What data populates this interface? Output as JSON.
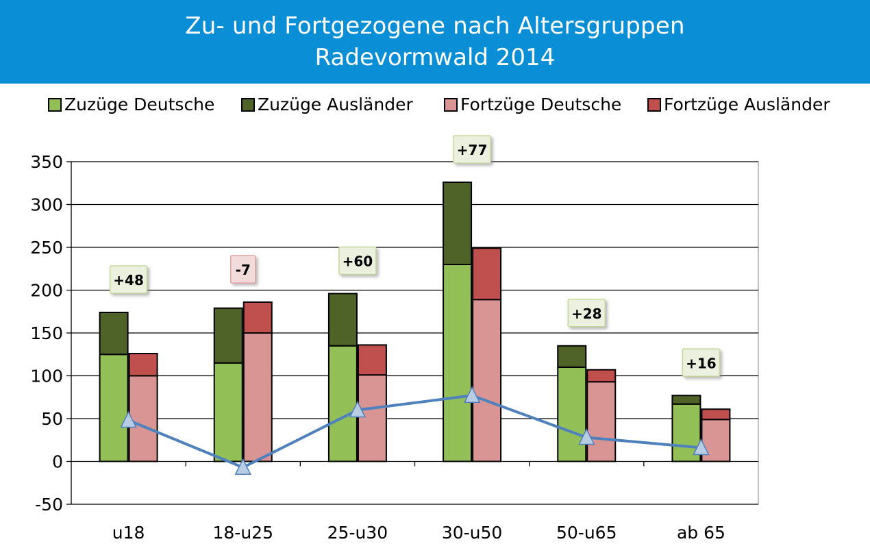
{
  "header": {
    "title_line1": "Zu- und Fortgezogene nach Altersgruppen",
    "title_line2": "Radevormwald 2014"
  },
  "colors": {
    "header_bg": "#0a8ed6",
    "zuzuege_deutsche": "#93bf57",
    "zuzuege_auslaender": "#4f6228",
    "fortzuege_deutsche": "#d99594",
    "fortzuege_auslaender": "#c0504d",
    "line": "#4f81bd",
    "marker": "#b8cce4",
    "label_positive_bg": "#ebf1de",
    "label_negative_bg": "#f2dcdb"
  },
  "legend": [
    {
      "label": "Zuzüge Deutsche",
      "color": "#93bf57"
    },
    {
      "label": "Zuzüge Ausländer",
      "color": "#4f6228"
    },
    {
      "label": "Fortzüge Deutsche",
      "color": "#d99594"
    },
    {
      "label": "Fortzüge Ausländer",
      "color": "#c0504d"
    }
  ],
  "chart_data": {
    "type": "bar",
    "stacked": true,
    "categories": [
      "u18",
      "18-u25",
      "25-u30",
      "30-u50",
      "50-u65",
      "ab 65"
    ],
    "series": [
      {
        "name": "Zuzüge Deutsche",
        "stack": "Zuzüge",
        "values": [
          125,
          115,
          135,
          230,
          110,
          67
        ]
      },
      {
        "name": "Zuzüge Ausländer",
        "stack": "Zuzüge",
        "values": [
          49,
          64,
          61,
          96,
          25,
          10
        ]
      },
      {
        "name": "Fortzüge Deutsche",
        "stack": "Fortzüge",
        "values": [
          100,
          150,
          101,
          189,
          93,
          49
        ]
      },
      {
        "name": "Fortzüge Ausländer",
        "stack": "Fortzüge",
        "values": [
          26,
          36,
          35,
          60,
          14,
          12
        ]
      }
    ],
    "line": {
      "values": [
        48,
        -7,
        60,
        77,
        28,
        16
      ]
    },
    "data_labels": [
      "+48",
      "-7",
      "+60",
      "+77",
      "+28",
      "+16"
    ],
    "yticks": [
      350,
      300,
      250,
      200,
      150,
      100,
      50,
      0,
      -50
    ],
    "ylim": [
      -50,
      350
    ],
    "grid": true,
    "legend_position": "top"
  }
}
